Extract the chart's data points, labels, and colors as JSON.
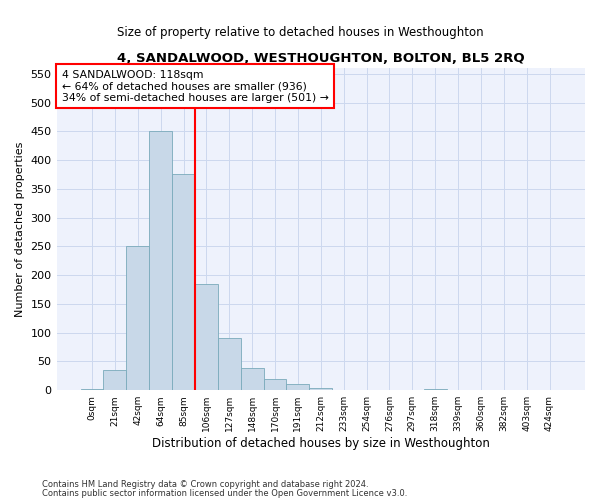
{
  "title": "4, SANDALWOOD, WESTHOUGHTON, BOLTON, BL5 2RQ",
  "subtitle": "Size of property relative to detached houses in Westhoughton",
  "xlabel": "Distribution of detached houses by size in Westhoughton",
  "ylabel": "Number of detached properties",
  "footnote1": "Contains HM Land Registry data © Crown copyright and database right 2024.",
  "footnote2": "Contains public sector information licensed under the Open Government Licence v3.0.",
  "bar_color": "#c8d8e8",
  "bar_edge_color": "#7aaabb",
  "grid_color": "#ccd8ee",
  "background_color": "#eef2fc",
  "categories": [
    "0sqm",
    "21sqm",
    "42sqm",
    "64sqm",
    "85sqm",
    "106sqm",
    "127sqm",
    "148sqm",
    "170sqm",
    "191sqm",
    "212sqm",
    "233sqm",
    "254sqm",
    "276sqm",
    "297sqm",
    "318sqm",
    "339sqm",
    "360sqm",
    "382sqm",
    "403sqm",
    "424sqm"
  ],
  "values": [
    2,
    35,
    250,
    450,
    375,
    185,
    90,
    38,
    20,
    10,
    4,
    1,
    1,
    0,
    0,
    2,
    0,
    0,
    0,
    0,
    0
  ],
  "property_label": "4 SANDALWOOD: 118sqm",
  "annotation_line1": "← 64% of detached houses are smaller (936)",
  "annotation_line2": "34% of semi-detached houses are larger (501) →",
  "vline_x": 4.5,
  "ylim": [
    0,
    560
  ],
  "yticks": [
    0,
    50,
    100,
    150,
    200,
    250,
    300,
    350,
    400,
    450,
    500,
    550
  ]
}
